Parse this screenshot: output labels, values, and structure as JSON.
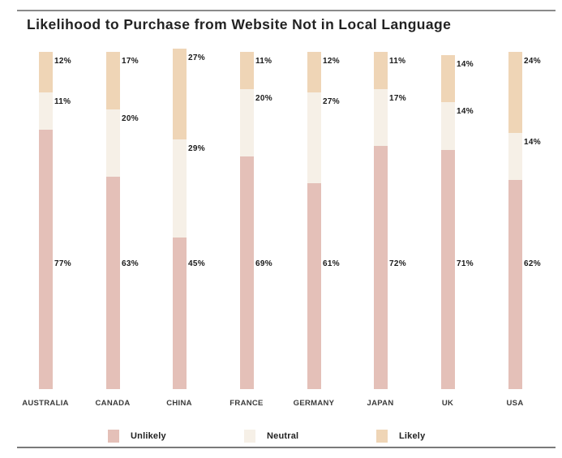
{
  "title": "Likelihood to Purchase from Website Not in Local Language",
  "colors": {
    "unlikely": "#e4c0b8",
    "neutral": "#f6f0e7",
    "likely": "#efd5b6",
    "rule": "#8a8a8a"
  },
  "legend": [
    {
      "key": "unlikely",
      "label": "Unlikely"
    },
    {
      "key": "neutral",
      "label": "Neutral"
    },
    {
      "key": "likely",
      "label": "Likely"
    }
  ],
  "chart_data": {
    "type": "bar",
    "stacked": true,
    "orientation": "vertical",
    "title": "Likelihood to Purchase from Website Not in Local Language",
    "xlabel": "",
    "ylabel": "",
    "ylim": [
      0,
      100
    ],
    "grid": false,
    "legend_position": "bottom",
    "categories": [
      "AUSTRALIA",
      "CANADA",
      "CHINA",
      "FRANCE",
      "GERMANY",
      "JAPAN",
      "UK",
      "USA"
    ],
    "series": [
      {
        "name": "Unlikely",
        "values": [
          77,
          63,
          45,
          69,
          61,
          72,
          71,
          62
        ]
      },
      {
        "name": "Neutral",
        "values": [
          11,
          20,
          29,
          20,
          27,
          17,
          14,
          14
        ]
      },
      {
        "name": "Likely",
        "values": [
          12,
          17,
          27,
          11,
          12,
          11,
          14,
          24
        ]
      }
    ],
    "data_labels": {
      "Unlikely": [
        "77%",
        "63%",
        "45%",
        "69%",
        "61%",
        "72%",
        "71%",
        "62%"
      ],
      "Neutral": [
        "11%",
        "20%",
        "29%",
        "20%",
        "27%",
        "17%",
        "14%",
        "14%"
      ],
      "Likely": [
        "12%",
        "17%",
        "27%",
        "11%",
        "12%",
        "11%",
        "14%",
        "24%"
      ]
    }
  }
}
